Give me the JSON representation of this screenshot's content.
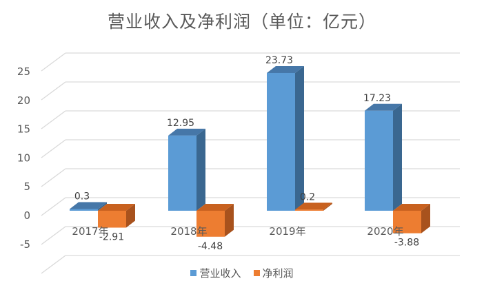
{
  "chart_data": {
    "type": "bar",
    "title": "营业收入及净利润（单位：亿元）",
    "categories": [
      "2017年",
      "2018年",
      "2019年",
      "2020年"
    ],
    "series": [
      {
        "name": "营业收入",
        "values": [
          0.3,
          12.95,
          23.73,
          17.23
        ],
        "color": "#5B9BD5"
      },
      {
        "name": "净利润",
        "values": [
          -2.91,
          -4.48,
          0.2,
          -3.88
        ],
        "color": "#ED7D31"
      }
    ],
    "xlabel": "",
    "ylabel": "",
    "ylim": [
      -5,
      25
    ],
    "yticks": [
      "25",
      "20",
      "15",
      "10",
      "5",
      "0",
      "-5"
    ],
    "grid": true,
    "legend_position": "bottom",
    "style": "3d-clustered-column"
  },
  "legend": {
    "items": [
      {
        "label": "营业收入",
        "color": "#5B9BD5"
      },
      {
        "label": "净利润",
        "color": "#ED7D31"
      }
    ]
  }
}
